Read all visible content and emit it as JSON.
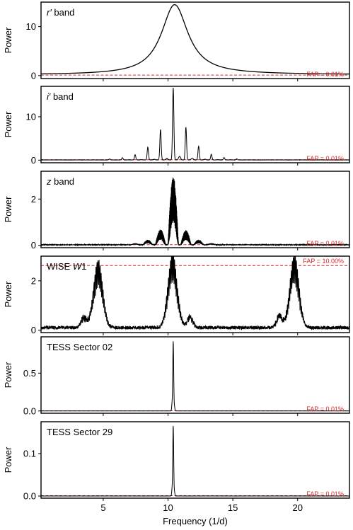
{
  "figure": {
    "xlabel": "Frequency (1/d)",
    "ylabel": "Power"
  },
  "colors": {
    "curve": "#000000",
    "fap_line": "#d62728",
    "fap_text": "#d62728",
    "frame": "#000000"
  },
  "chart_data": [
    {
      "type": "line",
      "title": "r′ band",
      "title_parts": [
        {
          "text": "r′",
          "italic": true
        },
        {
          "text": " band",
          "italic": false
        }
      ],
      "xlabel": "Frequency (1/d)",
      "ylabel": "Power",
      "xlim": [
        0.2,
        24.0
      ],
      "ylim": [
        -0.6,
        15.0
      ],
      "yticks": [
        0,
        10
      ],
      "ytick_labels": [
        "0",
        "10"
      ],
      "fap": {
        "value": 0.1,
        "label": "FAP = 0.01%"
      },
      "shape": {
        "kind": "lorentz",
        "f0": 10.5,
        "amp": 14.3,
        "hwhm": 1.25,
        "base": 0.18
      },
      "series": [
        {
          "x": [
            0.5,
            2,
            4,
            6,
            8,
            9,
            9.5,
            10,
            10.5,
            11,
            11.5,
            12,
            13,
            15,
            18,
            22,
            24
          ],
          "y": [
            0.9,
            1.1,
            1.6,
            2.6,
            6.0,
            9.5,
            12.0,
            13.6,
            14.3,
            13.6,
            11.8,
            9.2,
            5.2,
            2.0,
            0.9,
            0.5,
            0.4
          ]
        }
      ]
    },
    {
      "type": "line",
      "title": "i′ band",
      "title_parts": [
        {
          "text": "i′",
          "italic": true
        },
        {
          "text": " band",
          "italic": false
        }
      ],
      "xlabel": "Frequency (1/d)",
      "ylabel": "Power",
      "xlim": [
        0.2,
        24.0
      ],
      "ylim": [
        -0.6,
        17.0
      ],
      "yticks": [
        0,
        10
      ],
      "ytick_labels": [
        "0",
        "10"
      ],
      "fap": {
        "value": 0.1,
        "label": "FAP = 0.01%"
      },
      "shape": {
        "kind": "sidelobes",
        "f0": 10.4,
        "amp": 16.6,
        "spacing": 0.98,
        "decay": 0.42,
        "width": 0.05,
        "base": 0.05
      },
      "series": [
        {
          "x": [
            6.5,
            7.5,
            8.4,
            9.4,
            10.4,
            11.4,
            12.4,
            13.3,
            14.3
          ],
          "y": [
            0.3,
            0.6,
            1.5,
            5.3,
            16.6,
            5.7,
            1.7,
            0.6,
            0.3
          ]
        }
      ]
    },
    {
      "type": "line",
      "title": "z band",
      "title_parts": [
        {
          "text": "z",
          "italic": true
        },
        {
          "text": " band",
          "italic": false
        }
      ],
      "xlabel": "Frequency (1/d)",
      "ylabel": "Power",
      "xlim": [
        0.2,
        24.0
      ],
      "ylim": [
        -0.1,
        3.2
      ],
      "yticks": [
        0,
        2
      ],
      "ytick_labels": [
        "0",
        "2"
      ],
      "fap": {
        "value": 0.03,
        "label": "FAP = 0.01%"
      },
      "shape": {
        "kind": "filledLobes",
        "f0": 10.4,
        "amp": 3.0,
        "spacing": 0.98,
        "decay": 0.24,
        "halfwidth": 0.42,
        "base": 0.02,
        "hi_mod": 0.75,
        "lo_mod": 0.42
      },
      "series": [
        {
          "x": [
            6.5,
            7.4,
            8.4,
            9.4,
            10.4,
            11.4,
            12.4,
            13.3
          ],
          "y": [
            0.15,
            0.55,
            1.35,
            2.3,
            3.0,
            2.2,
            1.05,
            0.45
          ]
        }
      ]
    },
    {
      "type": "line",
      "title": "WISE W1",
      "title_parts": [
        {
          "text": "WISE ",
          "italic": false
        },
        {
          "text": "W",
          "italic": true
        },
        {
          "text": "1",
          "italic": false
        }
      ],
      "xlabel": "Frequency (1/d)",
      "ylabel": "Power",
      "xlim": [
        0.2,
        24.0
      ],
      "ylim": [
        -0.1,
        3.0
      ],
      "yticks": [
        0,
        2
      ],
      "ytick_labels": [
        "0",
        "2"
      ],
      "fap": {
        "value": 2.62,
        "label": "FAP = 10.00%"
      },
      "shape": {
        "kind": "aliases",
        "centers": [
          4.6,
          10.35,
          19.75
        ],
        "amps": [
          2.75,
          3.0,
          2.95
        ],
        "sidelobes": [
          [
            3.5,
            0.5
          ],
          [
            11.7,
            0.55
          ],
          [
            18.6,
            0.6
          ]
        ],
        "width": 0.22,
        "base": 0.1
      },
      "series": [
        {
          "x": [
            3.5,
            4.6,
            10.35,
            11.7,
            18.6,
            19.75
          ],
          "y": [
            0.5,
            2.75,
            3.0,
            0.55,
            0.6,
            2.95
          ]
        }
      ]
    },
    {
      "type": "line",
      "title": "TESS Sector 02",
      "title_parts": [
        {
          "text": "TESS Sector 02",
          "italic": false
        }
      ],
      "xlabel": "Frequency (1/d)",
      "ylabel": "Power",
      "xlim": [
        0.2,
        24.0
      ],
      "ylim": [
        -0.03,
        0.98
      ],
      "yticks": [
        0.0,
        0.5
      ],
      "ytick_labels": [
        "0.0",
        "0.5"
      ],
      "fap": {
        "value": 0.003,
        "label": "FAP = 0.01%"
      },
      "shape": {
        "kind": "spike",
        "f0": 10.4,
        "amp": 0.92,
        "width": 0.035,
        "side": 0.09,
        "base": 0.001
      },
      "series": [
        {
          "x": [
            10.2,
            10.4,
            10.6
          ],
          "y": [
            0.05,
            0.92,
            0.06
          ]
        }
      ]
    },
    {
      "type": "line",
      "title": "TESS Sector 29",
      "title_parts": [
        {
          "text": "TESS Sector 29",
          "italic": false
        }
      ],
      "xlabel": "Frequency (1/d)",
      "ylabel": "Power",
      "xlim": [
        0.2,
        24.0
      ],
      "ylim": [
        -0.005,
        0.175
      ],
      "yticks": [
        0.0,
        0.1
      ],
      "ytick_labels": [
        "0.0",
        "0.1"
      ],
      "fap": {
        "value": 0.0008,
        "label": "FAP = 0.01%"
      },
      "shape": {
        "kind": "spike",
        "f0": 10.4,
        "amp": 0.165,
        "width": 0.035,
        "side": 0.015,
        "base": 0.0002
      },
      "series": [
        {
          "x": [
            10.2,
            10.4,
            10.6
          ],
          "y": [
            0.01,
            0.165,
            0.012
          ]
        }
      ]
    }
  ],
  "x_axis": {
    "ticks": [
      5,
      10,
      15,
      20
    ],
    "tick_labels": [
      "5",
      "10",
      "15",
      "20"
    ]
  }
}
